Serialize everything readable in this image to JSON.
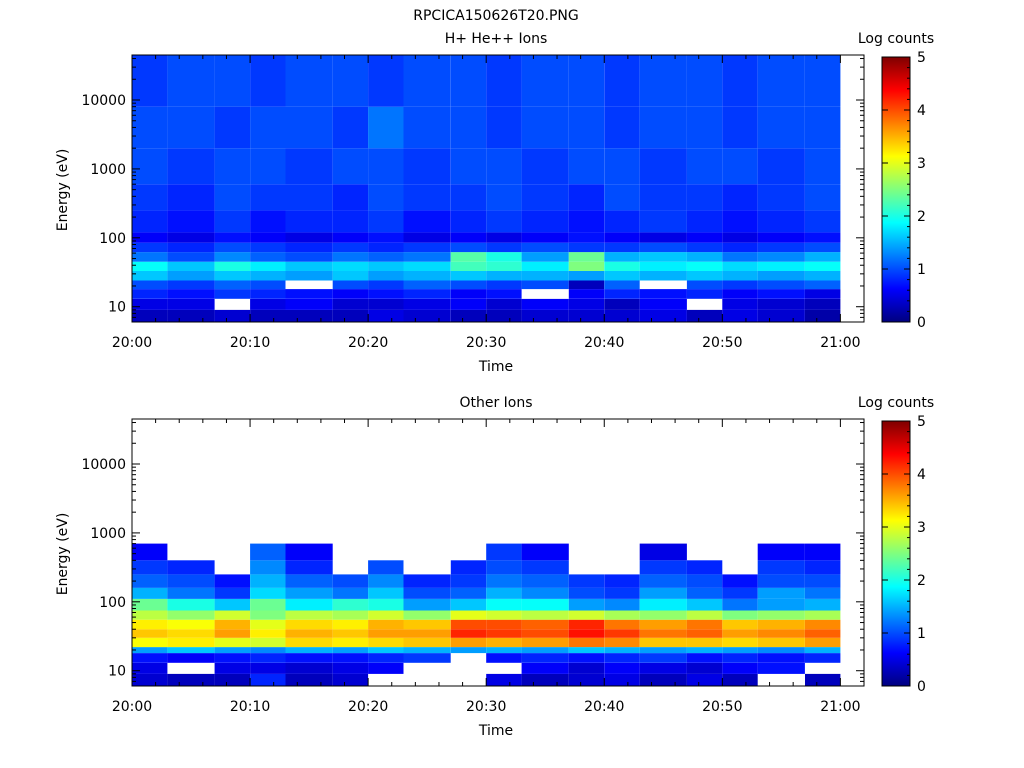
{
  "figure_title": "RPCICA150626T20.PNG",
  "colorbar": {
    "title": "Log counts",
    "ticks": [
      "0",
      "1",
      "2",
      "3",
      "4",
      "5"
    ],
    "colors": [
      "#00007f",
      "#0000ff",
      "#007fff",
      "#00ffff",
      "#7fff7f",
      "#ffff00",
      "#ff7f00",
      "#ff0000",
      "#7f0000"
    ]
  },
  "chart_data": [
    {
      "type": "heatmap",
      "title": "H+ He++ Ions",
      "xlabel": "Time",
      "ylabel": "Energy (eV)",
      "x_ticks": [
        "20:00",
        "20:10",
        "20:20",
        "20:30",
        "20:40",
        "20:50",
        "21:00"
      ],
      "y_ticks": [
        "10",
        "100",
        "1000",
        "10000"
      ],
      "y_scale": "log",
      "xlim": [
        "20:00",
        "21:02"
      ],
      "ylim": [
        6,
        45000
      ],
      "color_range": [
        0,
        5
      ],
      "time_bins": [
        "20:00",
        "20:03",
        "20:07",
        "20:10",
        "20:13",
        "20:17",
        "20:20",
        "20:23",
        "20:27",
        "20:30",
        "20:33",
        "20:37",
        "20:40",
        "20:43",
        "20:47",
        "20:50",
        "20:53",
        "20:57",
        "21:00"
      ],
      "energy_bands": [
        {
          "low": 6,
          "high": 9,
          "values": [
            0.3,
            0.3,
            0.4,
            0.3,
            0.3,
            0.3,
            0.5,
            0.4,
            0.3,
            0.3,
            0.4,
            0.4,
            0.4,
            0.5,
            0.3,
            0.5,
            0.4,
            0.2,
            0.3
          ]
        },
        {
          "low": 9,
          "high": 13,
          "values": [
            0.5,
            0.5,
            null,
            0.5,
            0.6,
            0.4,
            0.4,
            0.5,
            0.6,
            0.4,
            0.6,
            0.5,
            0.3,
            0.6,
            null,
            0.5,
            0.4,
            0.3,
            0.5
          ]
        },
        {
          "low": 13,
          "high": 18,
          "values": [
            0.8,
            0.7,
            0.9,
            0.8,
            0.7,
            0.6,
            0.7,
            0.8,
            0.6,
            0.7,
            null,
            0.6,
            0.8,
            0.7,
            0.8,
            0.6,
            0.7,
            0.5,
            0.8
          ]
        },
        {
          "low": 18,
          "high": 24,
          "values": [
            1.0,
            0.9,
            1.1,
            1.0,
            null,
            1.0,
            0.9,
            1.1,
            1.0,
            0.9,
            1.0,
            0.3,
            1.1,
            null,
            1.0,
            0.9,
            1.0,
            1.1,
            1.0
          ]
        },
        {
          "low": 24,
          "high": 33,
          "values": [
            1.6,
            1.4,
            1.6,
            1.5,
            1.4,
            1.6,
            1.4,
            1.5,
            1.6,
            1.5,
            1.5,
            1.4,
            1.6,
            1.5,
            1.6,
            1.5,
            1.4,
            1.5,
            1.6
          ]
        },
        {
          "low": 33,
          "high": 45,
          "values": [
            1.9,
            1.6,
            2.0,
            1.8,
            1.6,
            1.7,
            1.6,
            1.7,
            2.2,
            2.1,
            1.8,
            2.5,
            2.0,
            1.8,
            1.9,
            1.7,
            1.8,
            1.9,
            2.0
          ]
        },
        {
          "low": 45,
          "high": 62,
          "values": [
            1.2,
            1.0,
            1.3,
            1.1,
            1.0,
            1.2,
            1.1,
            1.2,
            2.3,
            2.0,
            1.4,
            2.4,
            1.5,
            1.6,
            1.5,
            1.2,
            1.3,
            1.5,
            1.9
          ]
        },
        {
          "low": 62,
          "high": 85,
          "values": [
            0.9,
            0.8,
            1.0,
            0.9,
            0.8,
            0.9,
            0.8,
            0.9,
            1.0,
            0.9,
            1.0,
            0.9,
            0.9,
            1.0,
            0.9,
            0.8,
            0.9,
            1.0,
            1.3
          ]
        },
        {
          "low": 85,
          "high": 120,
          "values": [
            0.6,
            0.5,
            0.7,
            0.6,
            0.5,
            0.6,
            0.7,
            0.5,
            0.6,
            0.5,
            0.6,
            0.7,
            0.6,
            0.5,
            0.6,
            0.5,
            0.6,
            0.7,
            0.8
          ]
        },
        {
          "low": 120,
          "high": 250,
          "values": [
            0.8,
            0.7,
            0.9,
            0.7,
            0.8,
            0.8,
            0.9,
            0.7,
            0.8,
            0.9,
            0.8,
            0.7,
            0.8,
            0.9,
            0.8,
            0.7,
            0.8,
            0.9,
            0.8
          ]
        },
        {
          "low": 250,
          "high": 600,
          "values": [
            0.9,
            0.8,
            1.0,
            0.9,
            0.9,
            0.8,
            1.0,
            0.9,
            0.9,
            1.0,
            0.9,
            0.8,
            1.0,
            0.9,
            0.9,
            0.8,
            0.9,
            1.0,
            0.9
          ]
        },
        {
          "low": 600,
          "high": 2000,
          "values": [
            1.0,
            0.9,
            1.0,
            1.0,
            0.9,
            1.0,
            1.0,
            0.9,
            1.0,
            1.0,
            0.9,
            1.0,
            1.0,
            0.9,
            1.0,
            1.0,
            0.9,
            1.0,
            1.0
          ]
        },
        {
          "low": 2000,
          "high": 8000,
          "values": [
            1.0,
            1.0,
            0.9,
            1.0,
            1.0,
            0.9,
            1.2,
            1.0,
            1.0,
            0.9,
            1.0,
            1.0,
            0.9,
            1.0,
            1.0,
            0.9,
            1.0,
            1.0,
            0.9
          ]
        },
        {
          "low": 8000,
          "high": 45000,
          "values": [
            0.9,
            1.0,
            1.0,
            0.9,
            1.0,
            1.0,
            0.9,
            1.0,
            1.0,
            0.9,
            1.0,
            1.0,
            0.9,
            1.0,
            1.0,
            0.9,
            1.0,
            1.0,
            1.0
          ]
        }
      ]
    },
    {
      "type": "heatmap",
      "title": "Other Ions",
      "xlabel": "Time",
      "ylabel": "Energy (eV)",
      "x_ticks": [
        "20:00",
        "20:10",
        "20:20",
        "20:30",
        "20:40",
        "20:50",
        "21:00"
      ],
      "y_ticks": [
        "10",
        "100",
        "1000",
        "10000"
      ],
      "y_scale": "log",
      "xlim": [
        "20:00",
        "21:02"
      ],
      "ylim": [
        6,
        45000
      ],
      "color_range": [
        0,
        5
      ],
      "time_bins": [
        "20:00",
        "20:03",
        "20:07",
        "20:10",
        "20:13",
        "20:17",
        "20:20",
        "20:23",
        "20:27",
        "20:30",
        "20:33",
        "20:37",
        "20:40",
        "20:43",
        "20:47",
        "20:50",
        "20:53",
        "20:57",
        "21:00"
      ],
      "energy_bands": [
        {
          "low": 6,
          "high": 9,
          "values": [
            0.4,
            0.3,
            0.3,
            0.8,
            0.3,
            0.4,
            null,
            null,
            null,
            0.5,
            0.3,
            0.4,
            0.5,
            0.3,
            0.5,
            0.3,
            null,
            0.3,
            0.5
          ]
        },
        {
          "low": 9,
          "high": 13,
          "values": [
            0.5,
            null,
            0.5,
            0.5,
            0.4,
            0.5,
            0.6,
            null,
            null,
            null,
            0.6,
            0.4,
            0.6,
            0.5,
            0.4,
            0.6,
            0.7,
            null,
            0.7
          ]
        },
        {
          "low": 13,
          "high": 18,
          "values": [
            0.7,
            0.6,
            0.7,
            0.8,
            0.7,
            0.7,
            0.8,
            0.9,
            null,
            0.7,
            0.8,
            0.7,
            0.8,
            0.9,
            0.7,
            0.8,
            0.7,
            0.8,
            0.9
          ]
        },
        {
          "low": 18,
          "high": 22,
          "values": [
            1.4,
            1.6,
            1.4,
            1.3,
            1.5,
            1.4,
            1.6,
            1.5,
            1.4,
            1.5,
            1.4,
            1.6,
            1.5,
            1.4,
            1.5,
            1.4,
            1.3,
            1.5,
            1.6
          ]
        },
        {
          "low": 22,
          "high": 30,
          "values": [
            3.1,
            3.2,
            3.0,
            2.9,
            3.3,
            3.2,
            3.3,
            3.4,
            3.6,
            3.5,
            3.6,
            3.8,
            3.7,
            3.4,
            3.4,
            3.3,
            3.4,
            3.6,
            3.7
          ]
        },
        {
          "low": 30,
          "high": 40,
          "values": [
            3.4,
            3.3,
            3.6,
            3.2,
            3.5,
            3.4,
            3.6,
            3.6,
            4.2,
            4.1,
            4.0,
            4.3,
            4.1,
            3.8,
            3.9,
            3.6,
            3.7,
            3.9,
            3.9
          ]
        },
        {
          "low": 40,
          "high": 55,
          "values": [
            3.2,
            3.1,
            3.5,
            3.0,
            3.3,
            3.2,
            3.5,
            3.4,
            4.0,
            4.0,
            3.9,
            4.2,
            3.8,
            3.6,
            3.8,
            3.4,
            3.5,
            3.7,
            3.8
          ]
        },
        {
          "low": 55,
          "high": 75,
          "values": [
            2.8,
            2.6,
            2.9,
            2.5,
            2.8,
            2.7,
            2.9,
            2.6,
            3.0,
            2.9,
            2.8,
            2.9,
            2.7,
            2.6,
            2.8,
            2.5,
            2.6,
            2.7,
            3.1
          ]
        },
        {
          "low": 75,
          "high": 110,
          "values": [
            2.4,
            2.0,
            1.6,
            2.4,
            1.8,
            2.1,
            2.0,
            1.4,
            1.6,
            1.9,
            1.9,
            1.4,
            1.3,
            1.8,
            1.6,
            1.2,
            1.4,
            1.5,
            2.0
          ]
        },
        {
          "low": 110,
          "high": 160,
          "values": [
            1.5,
            1.2,
            0.9,
            1.7,
            1.4,
            1.2,
            1.6,
            1.0,
            1.1,
            1.5,
            1.3,
            1.0,
            0.9,
            1.4,
            1.1,
            0.9,
            1.4,
            1.2,
            1.5
          ]
        },
        {
          "low": 160,
          "high": 250,
          "values": [
            1.1,
            1.0,
            0.7,
            1.5,
            1.1,
            1.0,
            1.3,
            0.8,
            0.9,
            1.2,
            1.1,
            0.9,
            0.8,
            1.1,
            1.0,
            0.7,
            1.0,
            1.0,
            1.1
          ]
        },
        {
          "low": 250,
          "high": 400,
          "values": [
            0.9,
            0.8,
            null,
            1.3,
            0.8,
            null,
            1.0,
            null,
            0.8,
            1.0,
            0.9,
            null,
            null,
            0.9,
            0.8,
            null,
            0.9,
            0.8,
            0.9
          ]
        },
        {
          "low": 400,
          "high": 700,
          "values": [
            0.6,
            null,
            null,
            1.1,
            0.6,
            null,
            null,
            null,
            null,
            0.9,
            0.6,
            null,
            null,
            0.5,
            null,
            null,
            0.6,
            0.6,
            null
          ]
        }
      ]
    }
  ]
}
